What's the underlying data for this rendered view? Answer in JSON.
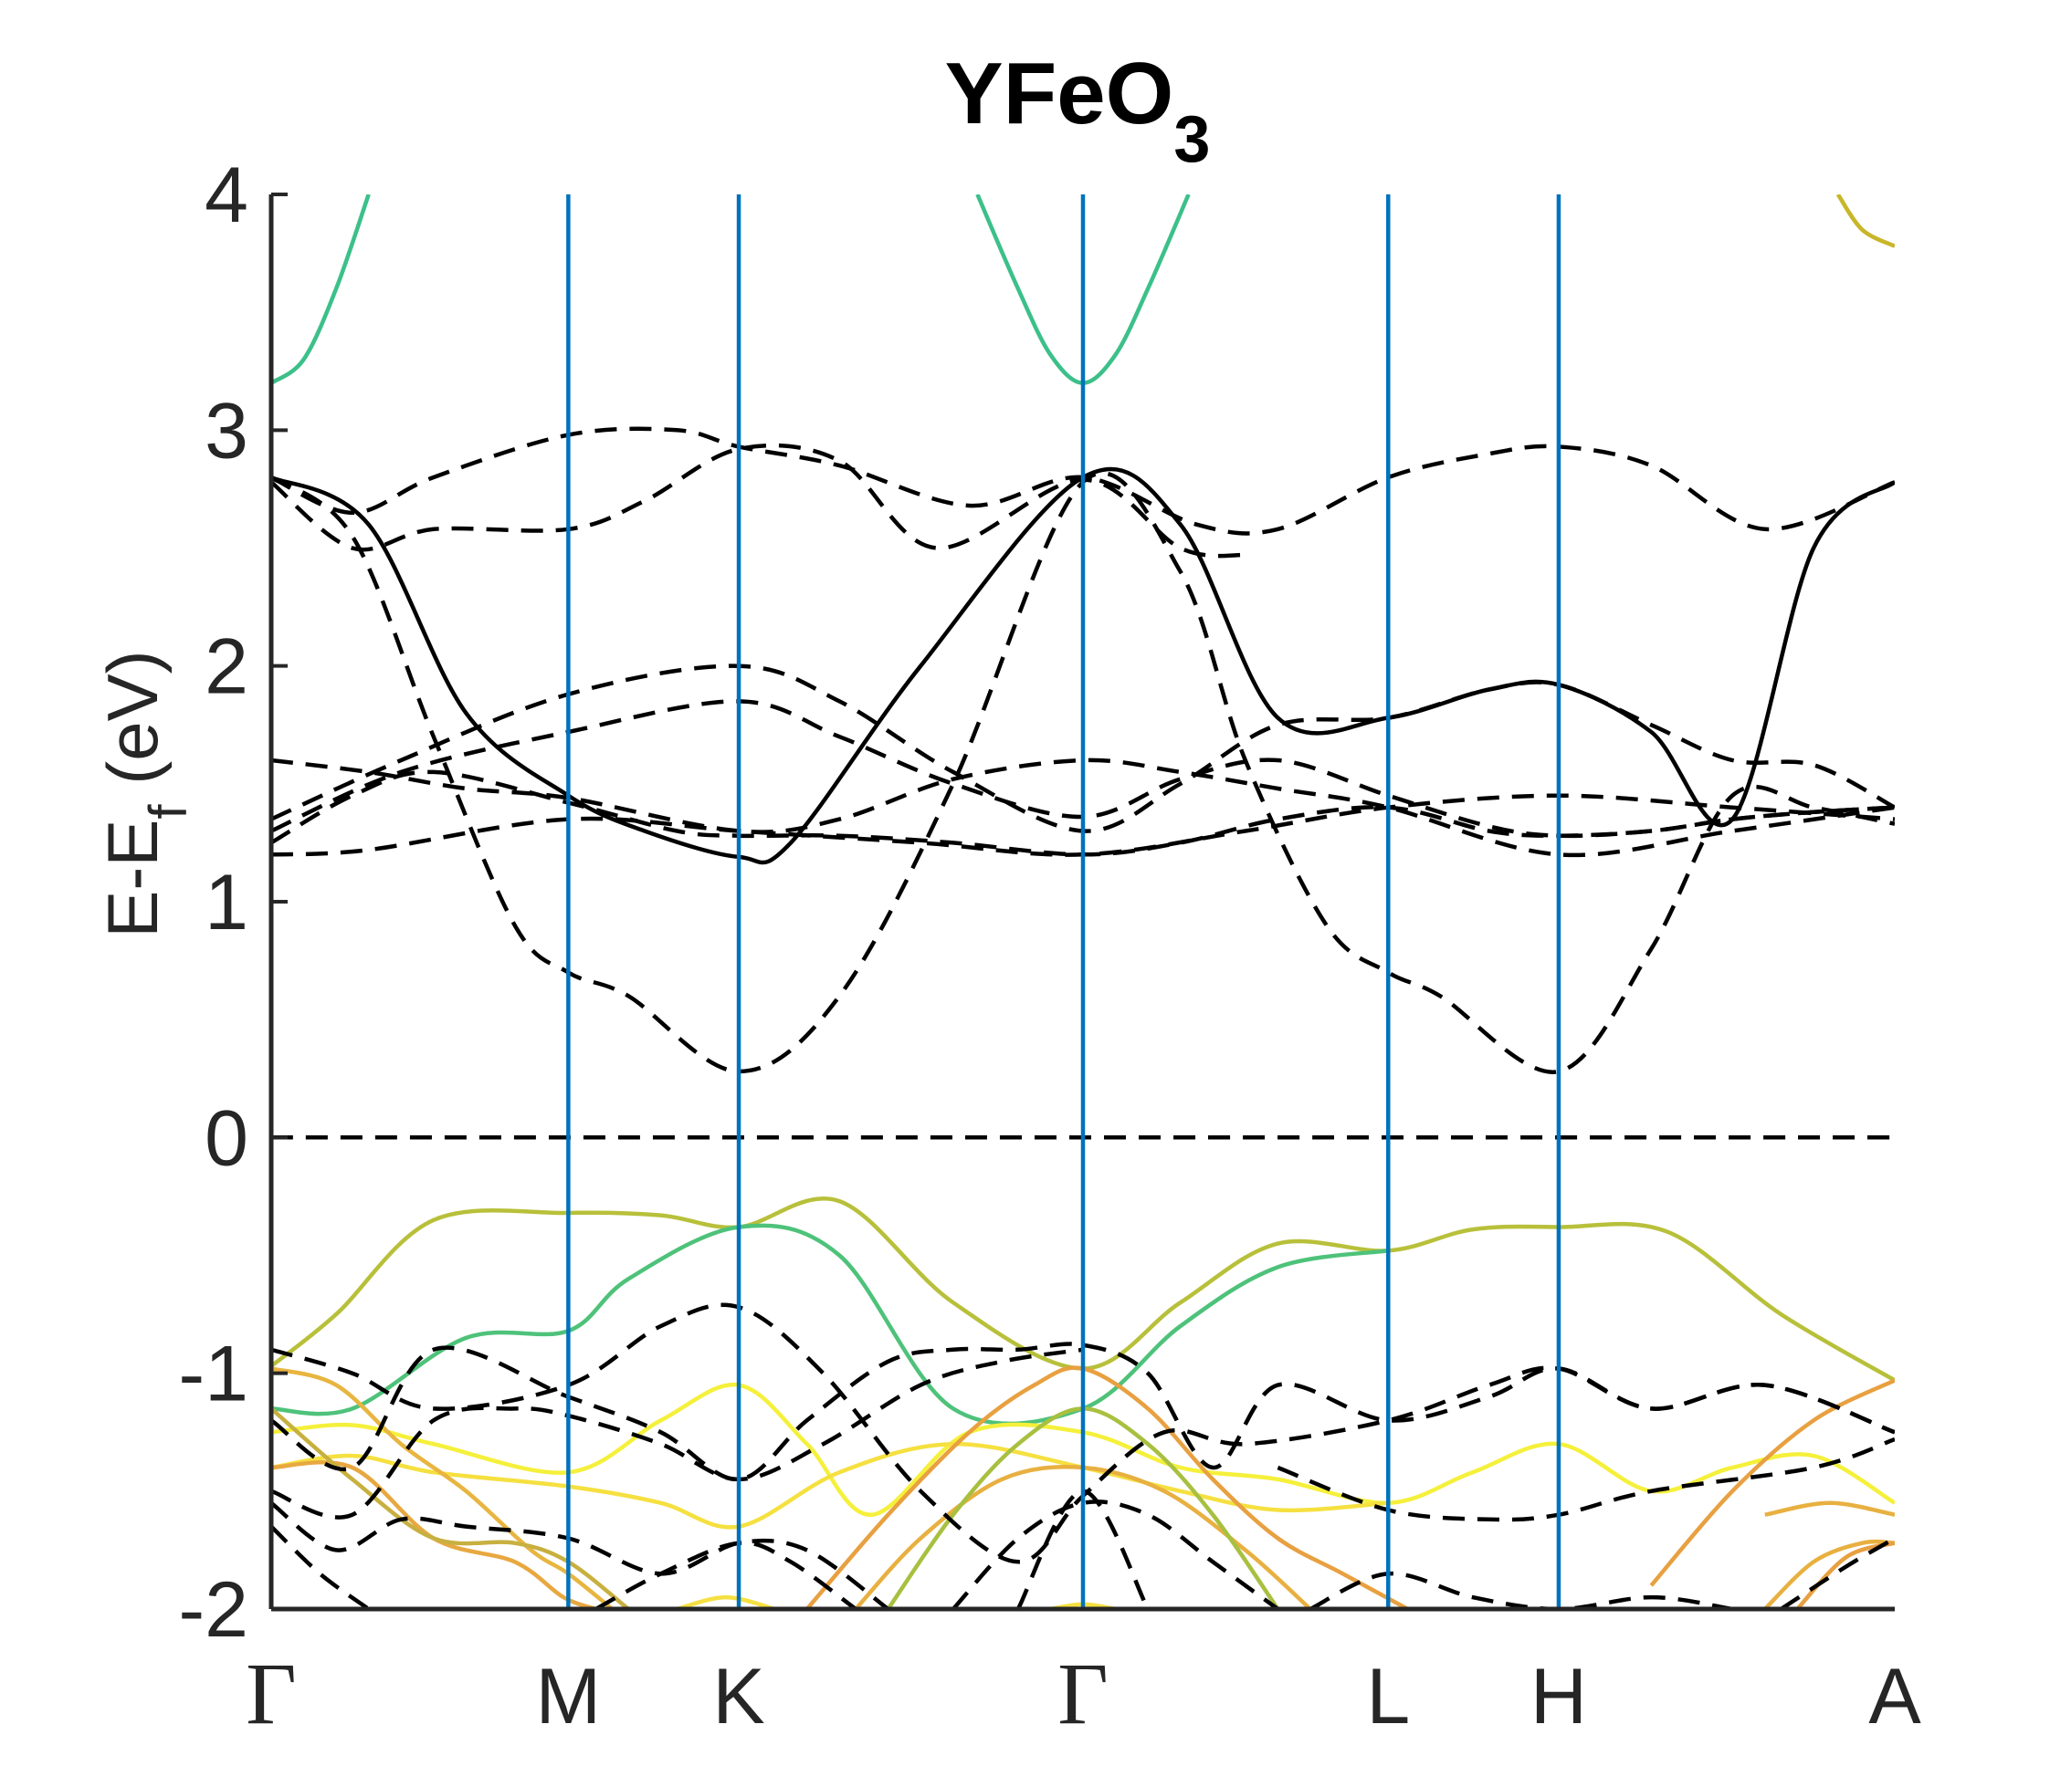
{
  "chart_data": {
    "type": "line",
    "title": "YFeO",
    "title_subscript": "3",
    "ylabel": "E-E",
    "ylabel_subscript": "f",
    "ylabel_unit": " (eV)",
    "ylim": [
      -2,
      4
    ],
    "yticks": [
      "-2",
      "-1",
      "0",
      "1",
      "2",
      "3",
      "4"
    ],
    "grid": false,
    "k_path": [
      {
        "label": "Γ",
        "k": 0.0
      },
      {
        "label": "M",
        "k": 0.183
      },
      {
        "label": "K",
        "k": 0.288
      },
      {
        "label": "Γ",
        "k": 0.5
      },
      {
        "label": "L",
        "k": 0.688
      },
      {
        "label": "H",
        "k": 0.793
      },
      {
        "label": "A",
        "k": 1.0
      }
    ],
    "fermi_level": 0,
    "colors": {
      "high_symmetry_line": "#0072BD",
      "dashed_band": "#000000",
      "axis": "#262626"
    },
    "series": [
      {
        "style": "colored",
        "color": "#3cc08a",
        "x": [
          0,
          0.02,
          0.04,
          0.06
        ],
        "y": [
          3.2,
          3.3,
          3.6,
          4.0
        ]
      },
      {
        "style": "colored",
        "color": "#3cc08a",
        "x": [
          0.435,
          0.46,
          0.48,
          0.5,
          0.52,
          0.54,
          0.565
        ],
        "y": [
          4.0,
          3.6,
          3.32,
          3.2,
          3.32,
          3.6,
          4.0
        ]
      },
      {
        "style": "colored",
        "color": "#c8b62a",
        "x": [
          0.965,
          0.98,
          1.0
        ],
        "y": [
          4.0,
          3.85,
          3.78
        ]
      },
      {
        "style": "dashed",
        "x": [
          0,
          0.05,
          0.1,
          0.183,
          0.25,
          0.288,
          0.35,
          0.43,
          0.5,
          0.57,
          0.62,
          0.688,
          0.75,
          0.793,
          0.85,
          0.92,
          1.0
        ],
        "y": [
          2.8,
          2.65,
          2.8,
          2.98,
          3.0,
          2.93,
          2.85,
          2.68,
          2.8,
          2.6,
          2.58,
          2.8,
          2.9,
          2.93,
          2.85,
          2.58,
          2.78
        ]
      },
      {
        "style": "dashed",
        "x": [
          0,
          0.05,
          0.1,
          0.183,
          0.23,
          0.288,
          0.35,
          0.41,
          0.5,
          0.56,
          0.6
        ],
        "y": [
          2.78,
          2.5,
          2.58,
          2.58,
          2.7,
          2.92,
          2.87,
          2.5,
          2.79,
          2.5,
          2.47
        ]
      },
      {
        "style": "solid",
        "x": [
          0,
          0.06,
          0.12,
          0.183,
          0.23,
          0.288,
          0.32,
          0.4,
          0.5,
          0.56,
          0.62,
          0.688,
          0.75,
          0.793,
          0.85,
          0.9,
          0.95,
          1.0
        ],
        "y": [
          2.8,
          2.6,
          1.8,
          1.45,
          1.3,
          1.19,
          1.25,
          2.0,
          2.8,
          2.6,
          1.78,
          1.78,
          1.9,
          1.92,
          1.72,
          1.35,
          2.5,
          2.78
        ]
      },
      {
        "style": "dashed",
        "x": [
          0,
          0.05,
          0.1,
          0.15,
          0.183,
          0.22,
          0.288,
          0.35,
          0.42,
          0.5,
          0.56,
          0.6,
          0.65,
          0.688,
          0.72,
          0.793,
          0.85,
          0.9,
          0.95,
          1.0
        ],
        "y": [
          2.8,
          2.55,
          1.7,
          0.9,
          0.7,
          0.6,
          0.28,
          0.6,
          1.5,
          2.78,
          2.4,
          1.6,
          0.9,
          0.7,
          0.6,
          0.28,
          0.8,
          1.45,
          1.4,
          1.33
        ]
      },
      {
        "style": "dashed",
        "x": [
          0,
          0.08,
          0.183,
          0.288,
          0.35,
          0.42,
          0.5,
          0.56,
          0.62,
          0.688,
          0.75,
          0.793,
          0.85,
          0.9,
          0.95,
          1.0
        ],
        "y": [
          1.35,
          1.6,
          1.88,
          2.0,
          1.85,
          1.55,
          1.3,
          1.5,
          1.75,
          1.78,
          1.9,
          1.92,
          1.75,
          1.6,
          1.58,
          1.4
        ]
      },
      {
        "style": "dashed",
        "x": [
          0,
          0.08,
          0.183,
          0.288,
          0.35,
          0.42,
          0.5,
          0.56,
          0.62,
          0.688,
          0.75,
          0.793,
          0.85,
          0.9,
          0.95,
          1.0
        ],
        "y": [
          1.3,
          1.55,
          1.72,
          1.85,
          1.7,
          1.5,
          1.36,
          1.52,
          1.6,
          1.45,
          1.32,
          1.28,
          1.3,
          1.35,
          1.38,
          1.4
        ]
      },
      {
        "style": "dashed",
        "x": [
          0,
          0.06,
          0.12,
          0.183,
          0.288,
          0.35,
          0.42,
          0.5,
          0.56,
          0.62,
          0.688,
          0.793,
          0.9,
          1.0
        ],
        "y": [
          1.6,
          1.55,
          1.48,
          1.44,
          1.3,
          1.35,
          1.52,
          1.6,
          1.55,
          1.48,
          1.4,
          1.2,
          1.3,
          1.4
        ]
      },
      {
        "style": "dashed",
        "x": [
          0,
          0.05,
          0.1,
          0.183,
          0.25,
          0.288,
          0.35,
          0.42,
          0.5,
          0.56,
          0.62,
          0.688,
          0.75,
          0.793,
          0.85,
          0.9,
          0.95,
          1.0
        ],
        "y": [
          1.25,
          1.45,
          1.55,
          1.42,
          1.3,
          1.28,
          1.28,
          1.25,
          1.2,
          1.25,
          1.35,
          1.4,
          1.3,
          1.28,
          1.3,
          1.35,
          1.38,
          1.4
        ]
      },
      {
        "style": "dashed",
        "x": [
          0,
          0.06,
          0.183,
          0.288,
          0.4,
          0.5,
          0.6,
          0.688,
          0.793,
          0.9,
          1.0
        ],
        "y": [
          1.2,
          1.22,
          1.35,
          1.3,
          1.25,
          1.2,
          1.3,
          1.4,
          1.45,
          1.4,
          1.35
        ]
      },
      {
        "style": "dashed",
        "x": [
          0,
          1.0
        ],
        "y": [
          0,
          0
        ]
      },
      {
        "style": "colored",
        "color": "#b8c03a",
        "x": [
          0,
          0.04,
          0.1,
          0.183,
          0.24,
          0.288,
          0.35,
          0.42,
          0.5,
          0.56,
          0.62,
          0.688,
          0.74,
          0.793,
          0.86,
          0.93,
          1.0
        ],
        "y": [
          -0.97,
          -0.75,
          -0.35,
          -0.32,
          -0.33,
          -0.38,
          -0.27,
          -0.7,
          -0.98,
          -0.7,
          -0.45,
          -0.48,
          -0.39,
          -0.38,
          -0.4,
          -0.75,
          -1.03
        ]
      },
      {
        "style": "colored",
        "color": "#4ec27a",
        "x": [
          0,
          0.05,
          0.12,
          0.183,
          0.22,
          0.288,
          0.35,
          0.42,
          0.5,
          0.56,
          0.62,
          0.688
        ],
        "y": [
          -1.15,
          -1.15,
          -0.85,
          -0.82,
          -0.6,
          -0.38,
          -0.5,
          -1.15,
          -1.15,
          -0.8,
          -0.55,
          -0.48
        ]
      },
      {
        "style": "colored",
        "color": "#f5f03a",
        "x": [
          0,
          0.05,
          0.1,
          0.183,
          0.24,
          0.288,
          0.33,
          0.37,
          0.43,
          0.5,
          0.56,
          0.62,
          0.688,
          0.74,
          0.793,
          0.85,
          0.9,
          0.95,
          1.0
        ],
        "y": [
          -1.25,
          -1.22,
          -1.3,
          -1.42,
          -1.2,
          -1.05,
          -1.3,
          -1.6,
          -1.25,
          -1.25,
          -1.4,
          -1.45,
          -1.55,
          -1.42,
          -1.3,
          -1.5,
          -1.4,
          -1.35,
          -1.55
        ]
      },
      {
        "style": "colored",
        "color": "#f5e040",
        "x": [
          0,
          0.05,
          0.1,
          0.183,
          0.24,
          0.288,
          0.35,
          0.42,
          0.5,
          0.56,
          0.62,
          0.688
        ],
        "y": [
          -1.4,
          -1.35,
          -1.42,
          -1.48,
          -1.55,
          -1.65,
          -1.42,
          -1.3,
          -1.4,
          -1.5,
          -1.58,
          -1.55
        ]
      },
      {
        "style": "colored",
        "color": "#e8b540",
        "x": [
          0,
          0.04,
          0.08,
          0.12,
          0.16,
          0.183,
          0.21
        ],
        "y": [
          -0.98,
          -1.05,
          -1.3,
          -1.5,
          -1.75,
          -1.85,
          -2.0
        ]
      },
      {
        "style": "colored",
        "color": "#e8a840",
        "x": [
          0,
          0.05,
          0.1,
          0.15,
          0.18,
          0.2
        ],
        "y": [
          -1.4,
          -1.4,
          -1.7,
          -1.8,
          -1.95,
          -2.0
        ]
      },
      {
        "style": "colored",
        "color": "#c8b040",
        "x": [
          0,
          0.05,
          0.1,
          0.15,
          0.183,
          0.22
        ],
        "y": [
          -1.15,
          -1.45,
          -1.7,
          -1.72,
          -1.8,
          -2.0
        ]
      },
      {
        "style": "colored",
        "color": "#e8a040",
        "x": [
          0.33,
          0.38,
          0.43,
          0.47,
          0.5,
          0.54,
          0.58,
          0.62,
          0.66,
          0.7
        ],
        "y": [
          -2.0,
          -1.6,
          -1.25,
          -1.05,
          -0.98,
          -1.15,
          -1.45,
          -1.7,
          -1.85,
          -2.0
        ]
      },
      {
        "style": "colored",
        "color": "#e8b040",
        "x": [
          0.36,
          0.4,
          0.45,
          0.5,
          0.55,
          0.6,
          0.64
        ],
        "y": [
          -2.0,
          -1.7,
          -1.45,
          -1.4,
          -1.5,
          -1.75,
          -2.0
        ]
      },
      {
        "style": "colored",
        "color": "#a8c040",
        "x": [
          0.38,
          0.42,
          0.46,
          0.5,
          0.54,
          0.58,
          0.62
        ],
        "y": [
          -2.0,
          -1.6,
          -1.3,
          -1.15,
          -1.3,
          -1.6,
          -2.0
        ]
      },
      {
        "style": "colored",
        "color": "#e8b040",
        "x": [
          0.92,
          0.95,
          0.98,
          1.0
        ],
        "y": [
          -2.0,
          -1.8,
          -1.72,
          -1.72
        ]
      },
      {
        "style": "colored",
        "color": "#e8a040",
        "x": [
          0.94,
          0.97,
          1.0
        ],
        "y": [
          -2.0,
          -1.78,
          -1.72
        ]
      },
      {
        "style": "colored",
        "color": "#e8b040",
        "x": [
          0.92,
          0.96,
          1.0
        ],
        "y": [
          -1.6,
          -1.55,
          -1.6
        ]
      },
      {
        "style": "colored",
        "color": "#f5e040",
        "x": [
          0.25,
          0.28,
          0.31
        ],
        "y": [
          -2.0,
          -1.95,
          -2.0
        ]
      },
      {
        "style": "colored",
        "color": "#f5e040",
        "x": [
          0.48,
          0.5,
          0.52
        ],
        "y": [
          -2.0,
          -1.98,
          -2.0
        ]
      },
      {
        "style": "colored",
        "color": "#e8a040",
        "x": [
          0.85,
          0.9,
          0.95,
          1.0
        ],
        "y": [
          -1.9,
          -1.5,
          -1.2,
          -1.03
        ]
      },
      {
        "style": "dashed",
        "x": [
          0,
          0.05,
          0.1,
          0.183,
          0.24,
          0.288,
          0.34,
          0.4,
          0.46,
          0.5,
          0.55,
          0.6,
          0.688,
          0.75,
          0.793,
          0.85,
          0.92,
          1.0
        ],
        "y": [
          -0.9,
          -1.0,
          -1.15,
          -1.05,
          -0.8,
          -0.72,
          -1.0,
          -1.5,
          -1.8,
          -1.52,
          -1.25,
          -1.3,
          -1.2,
          -1.05,
          -0.98,
          -1.15,
          -1.05,
          -1.25
        ]
      },
      {
        "style": "dashed",
        "x": [
          0,
          0.05,
          0.1,
          0.183,
          0.24,
          0.288,
          0.33,
          0.38,
          0.42,
          0.46,
          0.5,
          0.54,
          0.58,
          0.62,
          0.688,
          0.75,
          0.793,
          0.85,
          0.92,
          1.0
        ],
        "y": [
          -1.2,
          -1.4,
          -0.9,
          -1.1,
          -1.25,
          -1.45,
          -1.2,
          -0.95,
          -0.9,
          -0.9,
          -0.88,
          -1.0,
          -1.4,
          -1.05,
          -1.2,
          -1.1,
          -0.98,
          -1.15,
          -1.05,
          -1.25
        ]
      },
      {
        "style": "dashed",
        "x": [
          0,
          0.05,
          0.1,
          0.15,
          0.183,
          0.24,
          0.288,
          0.34,
          0.4,
          0.45,
          0.5
        ],
        "y": [
          -1.5,
          -1.6,
          -1.2,
          -1.15,
          -1.18,
          -1.3,
          -1.45,
          -1.3,
          -1.05,
          -0.95,
          -0.9
        ]
      },
      {
        "style": "dashed",
        "x": [
          0,
          0.04,
          0.08,
          0.12,
          0.183,
          0.24,
          0.288,
          0.33,
          0.38
        ],
        "y": [
          -1.55,
          -1.75,
          -1.62,
          -1.65,
          -1.7,
          -1.85,
          -1.72,
          -1.75,
          -2.0
        ]
      },
      {
        "style": "dashed",
        "x": [
          0,
          0.03,
          0.06
        ],
        "y": [
          -1.65,
          -1.85,
          -2.0
        ]
      },
      {
        "style": "dashed",
        "x": [
          0.2,
          0.24,
          0.288,
          0.32,
          0.36
        ],
        "y": [
          -2.0,
          -1.85,
          -1.72,
          -1.8,
          -2.0
        ]
      },
      {
        "style": "dashed",
        "x": [
          0.42,
          0.46,
          0.5,
          0.54,
          0.58,
          0.62
        ],
        "y": [
          -2.0,
          -1.7,
          -1.55,
          -1.6,
          -1.8,
          -2.0
        ]
      },
      {
        "style": "dashed",
        "x": [
          0.46,
          0.5,
          0.54
        ],
        "y": [
          -2.0,
          -1.5,
          -2.0
        ]
      },
      {
        "style": "dashed",
        "x": [
          0.64,
          0.688,
          0.74,
          0.793,
          0.85,
          0.9
        ],
        "y": [
          -2.0,
          -1.85,
          -1.95,
          -2.0,
          -1.95,
          -2.0
        ]
      },
      {
        "style": "dashed",
        "x": [
          0.62,
          0.688,
          0.75,
          0.793,
          0.85,
          0.95,
          1.0
        ],
        "y": [
          -1.4,
          -1.58,
          -1.62,
          -1.6,
          -1.5,
          -1.4,
          -1.28
        ]
      },
      {
        "style": "dashed",
        "x": [
          0.93,
          0.97,
          1.0
        ],
        "y": [
          -2.0,
          -1.82,
          -1.7
        ]
      }
    ]
  }
}
